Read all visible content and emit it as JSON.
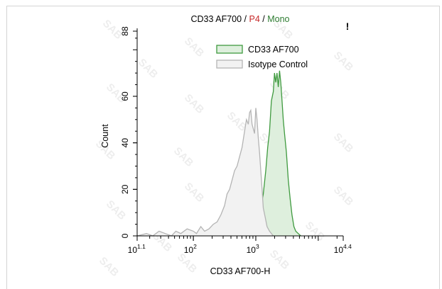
{
  "chart_data": {
    "type": "histogram",
    "title": {
      "parts": [
        {
          "text": "CD33 AF700",
          "color": "#000000"
        },
        {
          "text": " / ",
          "color": "#000000"
        },
        {
          "text": "P4",
          "color": "#c62828"
        },
        {
          "text": " / ",
          "color": "#000000"
        },
        {
          "text": "Mono",
          "color": "#2e7d32"
        }
      ]
    },
    "corner_mark": "!",
    "xlabel": "CD33 AF700-H",
    "ylabel": "Count",
    "xscale": "log10",
    "xlim": [
      1.1,
      4.4
    ],
    "ylim": [
      0,
      88
    ],
    "xticks": [
      {
        "exp": 1.1,
        "base": "10",
        "sup": "1.1"
      },
      {
        "exp": 2,
        "base": "10",
        "sup": "2"
      },
      {
        "exp": 3,
        "base": "10",
        "sup": "3"
      },
      {
        "exp": 4.4,
        "base": "10",
        "sup": "4.4"
      }
    ],
    "yticks": [
      0,
      20,
      40,
      60,
      88
    ],
    "watermark": "SAB",
    "series": [
      {
        "name": "Isotype Control",
        "stroke": "#b4b4b4",
        "fill": "#f2f2f2",
        "points": [
          [
            1.1,
            0
          ],
          [
            1.25,
            1
          ],
          [
            1.35,
            0
          ],
          [
            1.45,
            2
          ],
          [
            1.55,
            1
          ],
          [
            1.65,
            0
          ],
          [
            1.72,
            2
          ],
          [
            1.8,
            1
          ],
          [
            1.9,
            3
          ],
          [
            2.0,
            2
          ],
          [
            2.05,
            1
          ],
          [
            2.12,
            4
          ],
          [
            2.18,
            2
          ],
          [
            2.25,
            3
          ],
          [
            2.32,
            5
          ],
          [
            2.38,
            6
          ],
          [
            2.44,
            9
          ],
          [
            2.5,
            13
          ],
          [
            2.54,
            18
          ],
          [
            2.58,
            20
          ],
          [
            2.62,
            24
          ],
          [
            2.66,
            28
          ],
          [
            2.7,
            30
          ],
          [
            2.74,
            34
          ],
          [
            2.78,
            38
          ],
          [
            2.82,
            45
          ],
          [
            2.85,
            50
          ],
          [
            2.88,
            48
          ],
          [
            2.9,
            53
          ],
          [
            2.92,
            54
          ],
          [
            2.94,
            48
          ],
          [
            2.96,
            46
          ],
          [
            2.98,
            44
          ],
          [
            3.0,
            55
          ],
          [
            3.02,
            50
          ],
          [
            3.04,
            42
          ],
          [
            3.06,
            36
          ],
          [
            3.08,
            28
          ],
          [
            3.1,
            20
          ],
          [
            3.12,
            12
          ],
          [
            3.15,
            8
          ],
          [
            3.18,
            4
          ],
          [
            3.22,
            2
          ],
          [
            3.28,
            0
          ]
        ]
      },
      {
        "name": "CD33 AF700",
        "stroke": "#3f9a3f",
        "fill": "#deefdd",
        "points": [
          [
            2.45,
            0
          ],
          [
            2.55,
            1
          ],
          [
            2.62,
            2
          ],
          [
            2.68,
            1
          ],
          [
            2.72,
            3
          ],
          [
            2.78,
            2
          ],
          [
            2.82,
            4
          ],
          [
            2.86,
            3
          ],
          [
            2.9,
            5
          ],
          [
            2.94,
            4
          ],
          [
            2.97,
            6
          ],
          [
            3.0,
            4
          ],
          [
            3.04,
            7
          ],
          [
            3.08,
            12
          ],
          [
            3.12,
            18
          ],
          [
            3.16,
            28
          ],
          [
            3.19,
            38
          ],
          [
            3.22,
            45
          ],
          [
            3.25,
            58
          ],
          [
            3.28,
            62
          ],
          [
            3.3,
            70
          ],
          [
            3.32,
            66
          ],
          [
            3.34,
            70
          ],
          [
            3.36,
            64
          ],
          [
            3.38,
            71
          ],
          [
            3.4,
            66
          ],
          [
            3.42,
            58
          ],
          [
            3.44,
            50
          ],
          [
            3.46,
            44
          ],
          [
            3.49,
            36
          ],
          [
            3.52,
            24
          ],
          [
            3.55,
            16
          ],
          [
            3.58,
            9
          ],
          [
            3.61,
            4
          ],
          [
            3.64,
            2
          ],
          [
            3.68,
            1
          ],
          [
            3.72,
            0
          ]
        ]
      }
    ],
    "legend": {
      "placement": "top-right",
      "items": [
        {
          "label": "CD33 AF700",
          "stroke": "#3f9a3f",
          "fill": "#deefdd"
        },
        {
          "label": "Isotype Control",
          "stroke": "#b4b4b4",
          "fill": "#f2f2f2"
        }
      ]
    }
  }
}
